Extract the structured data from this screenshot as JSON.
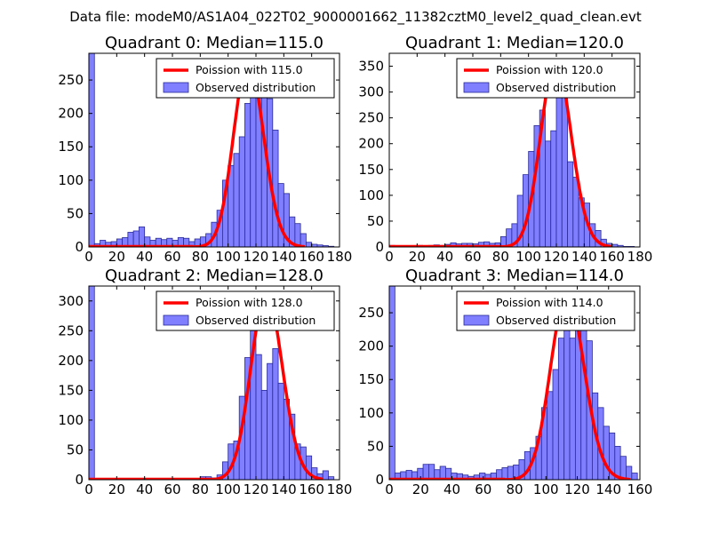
{
  "figure": {
    "suptitle": "Data file: modeM0/AS1A04_022T02_9000001662_11382cztM0_level2_quad_clean.evt",
    "bar_color": "#7f7fff",
    "bar_edge_color": "#2a2a99",
    "curve_color": "#ff0000"
  },
  "chart_data": [
    {
      "type": "bar",
      "title": "Quadrant 0: Median=115.0",
      "median": 115.0,
      "xlim": [
        0,
        180
      ],
      "ylim": [
        0,
        290
      ],
      "xticks": [
        0,
        20,
        40,
        60,
        80,
        100,
        120,
        140,
        160,
        180
      ],
      "yticks": [
        0,
        50,
        100,
        150,
        200,
        250
      ],
      "bin_width": 4,
      "bin_starts": [
        0,
        4,
        8,
        12,
        16,
        20,
        24,
        28,
        32,
        36,
        40,
        44,
        48,
        52,
        56,
        60,
        64,
        68,
        72,
        76,
        80,
        84,
        88,
        92,
        96,
        100,
        104,
        108,
        112,
        116,
        120,
        124,
        128,
        132,
        136,
        140,
        144,
        148,
        152,
        156,
        160,
        164,
        168,
        172
      ],
      "values": [
        290,
        5,
        10,
        7,
        8,
        12,
        14,
        22,
        24,
        30,
        15,
        10,
        13,
        11,
        13,
        10,
        14,
        13,
        8,
        12,
        15,
        20,
        37,
        55,
        100,
        122,
        140,
        165,
        215,
        230,
        245,
        262,
        222,
        175,
        95,
        80,
        45,
        35,
        20,
        7,
        4,
        3,
        2,
        1
      ],
      "series": [
        {
          "name": "Poission with 115.0",
          "kind": "line"
        },
        {
          "name": "Observed distribution",
          "kind": "bar"
        }
      ]
    },
    {
      "type": "bar",
      "title": "Quadrant 1: Median=120.0",
      "median": 120.0,
      "xlim": [
        0,
        180
      ],
      "ylim": [
        0,
        375
      ],
      "xticks": [
        0,
        20,
        40,
        60,
        80,
        100,
        120,
        140,
        160,
        180
      ],
      "yticks": [
        0,
        50,
        100,
        150,
        200,
        250,
        300,
        350
      ],
      "bin_width": 4,
      "bin_starts": [
        0,
        4,
        8,
        12,
        16,
        20,
        24,
        28,
        32,
        36,
        40,
        44,
        48,
        52,
        56,
        60,
        64,
        68,
        72,
        76,
        80,
        84,
        88,
        92,
        96,
        100,
        104,
        108,
        112,
        116,
        120,
        124,
        128,
        132,
        136,
        140,
        144,
        148,
        152,
        156,
        160,
        164,
        168,
        172
      ],
      "values": [
        3,
        2,
        2,
        2,
        2,
        3,
        2,
        3,
        4,
        3,
        5,
        8,
        6,
        7,
        7,
        6,
        9,
        10,
        7,
        8,
        20,
        35,
        45,
        100,
        140,
        185,
        235,
        265,
        205,
        225,
        315,
        290,
        165,
        135,
        95,
        85,
        45,
        32,
        15,
        7,
        5,
        3,
        1,
        1
      ],
      "series": [
        {
          "name": "Poission with 120.0",
          "kind": "line"
        },
        {
          "name": "Observed distribution",
          "kind": "bar"
        }
      ]
    },
    {
      "type": "bar",
      "title": "Quadrant 2: Median=128.0",
      "median": 128.0,
      "xlim": [
        0,
        180
      ],
      "ylim": [
        0,
        325
      ],
      "xticks": [
        0,
        20,
        40,
        60,
        80,
        100,
        120,
        140,
        160,
        180
      ],
      "yticks": [
        0,
        50,
        100,
        150,
        200,
        250,
        300
      ],
      "bin_width": 4,
      "bin_starts": [
        0,
        4,
        8,
        12,
        16,
        20,
        24,
        28,
        32,
        36,
        40,
        44,
        48,
        52,
        56,
        60,
        64,
        68,
        72,
        76,
        80,
        84,
        88,
        92,
        96,
        100,
        104,
        108,
        112,
        116,
        120,
        124,
        128,
        132,
        136,
        140,
        144,
        148,
        152,
        156,
        160,
        164,
        168,
        172
      ],
      "values": [
        325,
        2,
        2,
        2,
        2,
        2,
        2,
        2,
        2,
        2,
        2,
        2,
        2,
        2,
        2,
        2,
        2,
        2,
        2,
        2,
        5,
        5,
        3,
        8,
        30,
        60,
        65,
        140,
        205,
        250,
        210,
        150,
        195,
        220,
        162,
        135,
        110,
        60,
        55,
        40,
        20,
        10,
        15,
        5
      ],
      "series": [
        {
          "name": "Poission with 128.0",
          "kind": "line"
        },
        {
          "name": "Observed distribution",
          "kind": "bar"
        }
      ]
    },
    {
      "type": "bar",
      "title": "Quadrant 3: Median=114.0",
      "median": 114.0,
      "xlim": [
        0,
        160
      ],
      "ylim": [
        0,
        290
      ],
      "xticks": [
        0,
        20,
        40,
        60,
        80,
        100,
        120,
        140,
        160
      ],
      "yticks": [
        0,
        50,
        100,
        150,
        200,
        250
      ],
      "bin_width": 3.6,
      "bin_starts": [
        0,
        3.6,
        7.2,
        10.8,
        14.4,
        18,
        21.6,
        25.2,
        28.8,
        32.4,
        36,
        39.6,
        43.2,
        46.8,
        50.4,
        54,
        57.6,
        61.2,
        64.8,
        68.4,
        72,
        75.6,
        79.2,
        82.8,
        86.4,
        90,
        93.6,
        97.2,
        100.8,
        104.4,
        108,
        111.6,
        115.2,
        118.8,
        122.4,
        126,
        129.6,
        133.2,
        136.8,
        140.4,
        144,
        147.6,
        151.2,
        154.8
      ],
      "values": [
        290,
        10,
        12,
        14,
        12,
        17,
        23,
        23,
        15,
        20,
        17,
        10,
        9,
        7,
        5,
        7,
        10,
        8,
        10,
        15,
        18,
        20,
        22,
        30,
        42,
        48,
        65,
        108,
        132,
        165,
        212,
        255,
        212,
        265,
        250,
        208,
        130,
        108,
        80,
        70,
        50,
        35,
        20,
        10
      ],
      "series": [
        {
          "name": "Poission with 114.0",
          "kind": "line"
        },
        {
          "name": "Observed distribution",
          "kind": "bar"
        }
      ]
    }
  ]
}
